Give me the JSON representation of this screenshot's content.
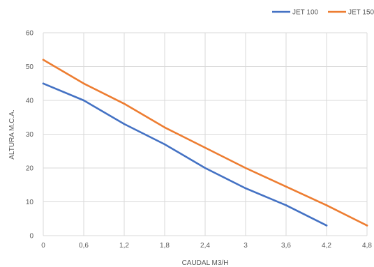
{
  "chart_data": {
    "type": "line",
    "title": "",
    "xlabel": "CAUDAL M3/H",
    "ylabel": "ALTURA M.C.A.",
    "x": [
      0,
      0.6,
      1.2,
      1.8,
      2.4,
      3,
      3.6,
      4.2,
      4.8
    ],
    "x_tick_labels": [
      "0",
      "0,6",
      "1,2",
      "1,8",
      "2,4",
      "3",
      "3,6",
      "4,2",
      "4,8"
    ],
    "y_ticks": [
      0,
      10,
      20,
      30,
      40,
      50,
      60
    ],
    "xlim": [
      0,
      4.8
    ],
    "ylim": [
      0,
      60
    ],
    "grid": true,
    "legend_position": "top-right",
    "series": [
      {
        "name": "JET 100",
        "color": "#4472C4",
        "x": [
          0,
          0.6,
          1.2,
          1.8,
          2.4,
          3,
          3.6,
          4.2
        ],
        "values": [
          45,
          40,
          33,
          27,
          20,
          14,
          9,
          3
        ]
      },
      {
        "name": "JET 150",
        "color": "#ED7D31",
        "x": [
          0,
          0.6,
          1.2,
          1.8,
          2.4,
          3,
          3.6,
          4.2,
          4.8
        ],
        "values": [
          52,
          45,
          39,
          32,
          26,
          20,
          14.5,
          9,
          3
        ]
      }
    ]
  }
}
